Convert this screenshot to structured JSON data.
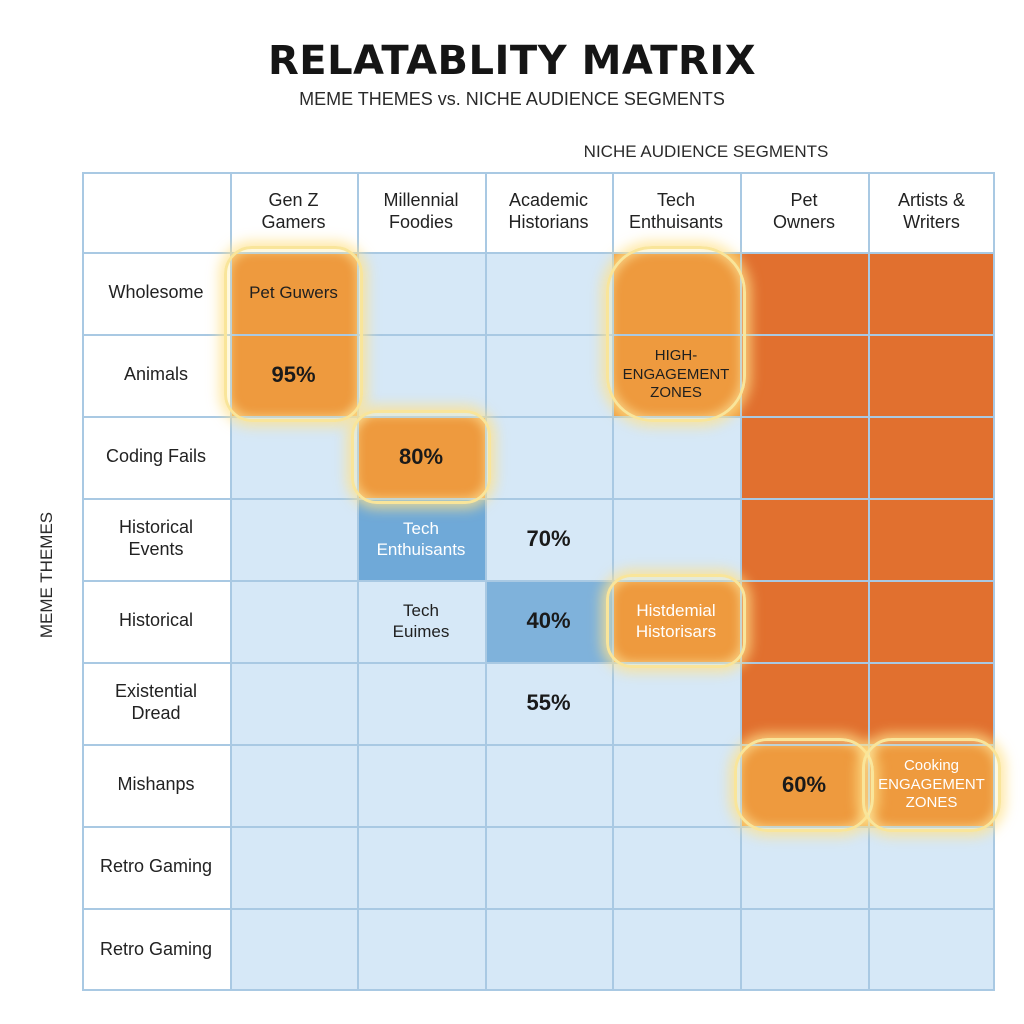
{
  "chart_data": {
    "type": "heatmap",
    "title": "RELATABLITY MATRIX",
    "subtitle": "MEME THEMES vs. NICHE AUDIENCE SEGMENTS",
    "xlabel": "NICHE AUDIENCE SEGMENTS",
    "ylabel": "MEME THEMES",
    "columns": [
      {
        "label": "Gen Z\nGamers"
      },
      {
        "label": "Millennial\nFoodies"
      },
      {
        "label": "Academic\nHistorians"
      },
      {
        "label": "Tech\nEnthuisants"
      },
      {
        "label": "Pet\nOwners"
      },
      {
        "label": "Artists &\nWriters"
      }
    ],
    "rows": [
      {
        "label": "Wholesome"
      },
      {
        "label": "Animals"
      },
      {
        "label": "Coding Fails"
      },
      {
        "label": "Historical\nEvents"
      },
      {
        "label": "Historical"
      },
      {
        "label": "Existential\nDread"
      },
      {
        "label": "Mishanps"
      },
      {
        "label": "Retro Gaming"
      },
      {
        "label": "Retro Gaming"
      }
    ],
    "values": [
      {
        "row": 1,
        "col": 0,
        "value": "95%"
      },
      {
        "row": 2,
        "col": 1,
        "value": "80%"
      },
      {
        "row": 3,
        "col": 2,
        "value": "70%"
      },
      {
        "row": 4,
        "col": 2,
        "value": "40%"
      },
      {
        "row": 5,
        "col": 2,
        "value": "55%"
      },
      {
        "row": 6,
        "col": 4,
        "value": "60%"
      }
    ],
    "cell_labels": [
      {
        "row": 0,
        "col": 0,
        "text": "Pet Guwers"
      },
      {
        "row": 3,
        "col": 1,
        "text": "Tech\nEnthuisants"
      },
      {
        "row": 4,
        "col": 1,
        "text": "Tech\nEuimes"
      },
      {
        "row": 4,
        "col": 3,
        "text": "Histdemial\nHistorisars"
      }
    ],
    "zone_labels": [
      {
        "text": "HIGH-ENGAGEMENT\nZONES"
      },
      {
        "text": "Cooking\nENGAGEMENT\nZONES"
      }
    ],
    "colors": {
      "base": "#d6e8f7",
      "highlight": "#ee9a3e",
      "deep": "#e1702f",
      "blue_highlight": "#6fa9d8",
      "glow": "#f9e59a"
    },
    "legend": "none",
    "grid": true
  }
}
